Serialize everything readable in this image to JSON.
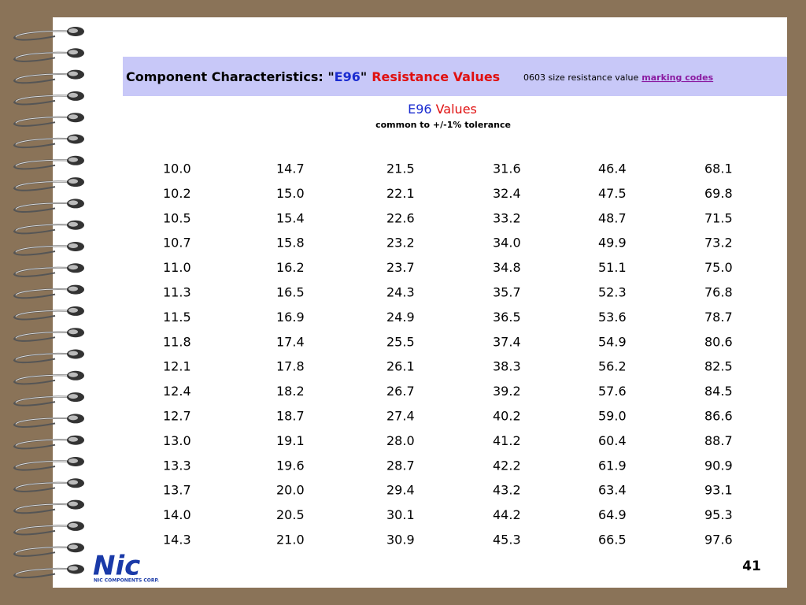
{
  "header": {
    "title": [
      "Component Characteristics: \"",
      "E96",
      "\"",
      "Resistance Values"
    ],
    "link_prefix": "0603 size resistance value",
    "link": "marking codes"
  },
  "subtitle": {
    "title": [
      "E96",
      "Values"
    ],
    "note": "common to +/-1% tolerance"
  },
  "table": {
    "columns": [
      [
        "10.0",
        "10.2",
        "10.5",
        "10.7",
        "11.0",
        "11.3",
        "11.5",
        "11.8",
        "12.1",
        "12.4",
        "12.7",
        "13.0",
        "13.3",
        "13.7",
        "14.0",
        "14.3"
      ],
      [
        "14.7",
        "15.0",
        "15.4",
        "15.8",
        "16.2",
        "16.5",
        "16.9",
        "17.4",
        "17.8",
        "18.2",
        "18.7",
        "19.1",
        "19.6",
        "20.0",
        "20.5",
        "21.0"
      ],
      [
        "21.5",
        "22.1",
        "22.6",
        "23.2",
        "23.7",
        "24.3",
        "24.9",
        "25.5",
        "26.1",
        "26.7",
        "27.4",
        "28.0",
        "28.7",
        "29.4",
        "30.1",
        "30.9"
      ],
      [
        "31.6",
        "32.4",
        "33.2",
        "34.0",
        "34.8",
        "35.7",
        "36.5",
        "37.4",
        "38.3",
        "39.2",
        "40.2",
        "41.2",
        "42.2",
        "43.2",
        "44.2",
        "45.3"
      ],
      [
        "46.4",
        "47.5",
        "48.7",
        "49.9",
        "51.1",
        "52.3",
        "53.6",
        "54.9",
        "56.2",
        "57.6",
        "59.0",
        "60.4",
        "61.9",
        "63.4",
        "64.9",
        "66.5"
      ],
      [
        "68.1",
        "69.8",
        "71.5",
        "73.2",
        "75.0",
        "76.8",
        "78.7",
        "80.6",
        "82.5",
        "84.5",
        "86.6",
        "88.7",
        "90.9",
        "93.1",
        "95.3",
        "97.6"
      ]
    ]
  },
  "logo": {
    "mark": "Nic",
    "caption": "NIC COMPONENTS CORP."
  },
  "page_number": "41"
}
